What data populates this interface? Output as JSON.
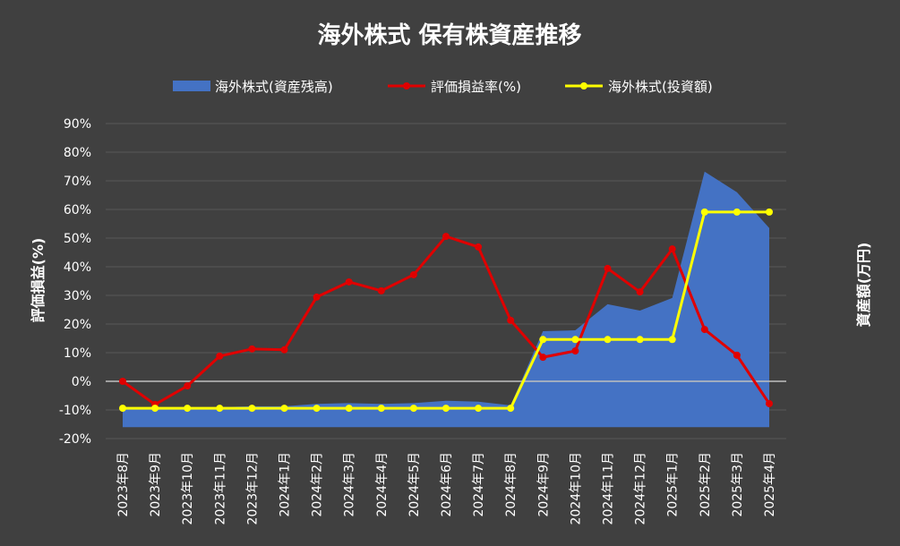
{
  "chart_data": {
    "type": "area",
    "title": "海外株式 保有株資産推移",
    "ylabel": "評価損益(%)",
    "y2label": "資産額(万円)",
    "ylim": [
      -20,
      90
    ],
    "yticks": [
      "90%",
      "80%",
      "70%",
      "60%",
      "50%",
      "40%",
      "30%",
      "20%",
      "10%",
      "0%",
      "-10%",
      "-20%"
    ],
    "grid": true,
    "legend_position": "top",
    "categories": [
      "2023年8月",
      "2023年9月",
      "2023年10月",
      "2023年11月",
      "2023年12月",
      "2024年1月",
      "2024年2月",
      "2024年3月",
      "2024年4月",
      "2024年5月",
      "2024年6月",
      "2024年7月",
      "2024年8月",
      "2024年9月",
      "2024年10月",
      "2024年11月",
      "2024年12月",
      "2025年1月",
      "2025年2月",
      "2025年3月",
      "2025年4月"
    ],
    "series": [
      {
        "name": "海外株式(資産残高)",
        "kind": "area",
        "color": "#4472C4",
        "values": [
          -9.5,
          -9.5,
          -9.5,
          -9.0,
          -8.7,
          -8.7,
          -7.9,
          -7.6,
          -7.9,
          -7.6,
          -6.8,
          -7.1,
          -8.4,
          17.5,
          17.8,
          26.9,
          24.7,
          29.1,
          73.2,
          66.0,
          53.5
        ]
      },
      {
        "name": "評価損益率(%)",
        "kind": "line",
        "color": "#E00000",
        "values": [
          0,
          -8.1,
          -1.6,
          8.8,
          11.3,
          11.0,
          29.4,
          34.7,
          31.6,
          37.2,
          50.6,
          46.9,
          21.3,
          8.4,
          10.6,
          39.4,
          31.2,
          46.2,
          18.1,
          9.1,
          -7.8
        ]
      },
      {
        "name": "海外株式(投資額)",
        "kind": "line",
        "color": "#FFFF00",
        "values": [
          -9.4,
          -9.4,
          -9.4,
          -9.4,
          -9.4,
          -9.4,
          -9.4,
          -9.4,
          -9.4,
          -9.4,
          -9.4,
          -9.4,
          -9.4,
          14.6,
          14.6,
          14.6,
          14.6,
          14.6,
          59.1,
          59.1,
          59.1
        ]
      }
    ],
    "area_baseline": -16
  },
  "colors": {
    "background": "#404040",
    "grid": "#595959",
    "zero_line": "#BFBFBF",
    "text": "#FFFFFF"
  }
}
